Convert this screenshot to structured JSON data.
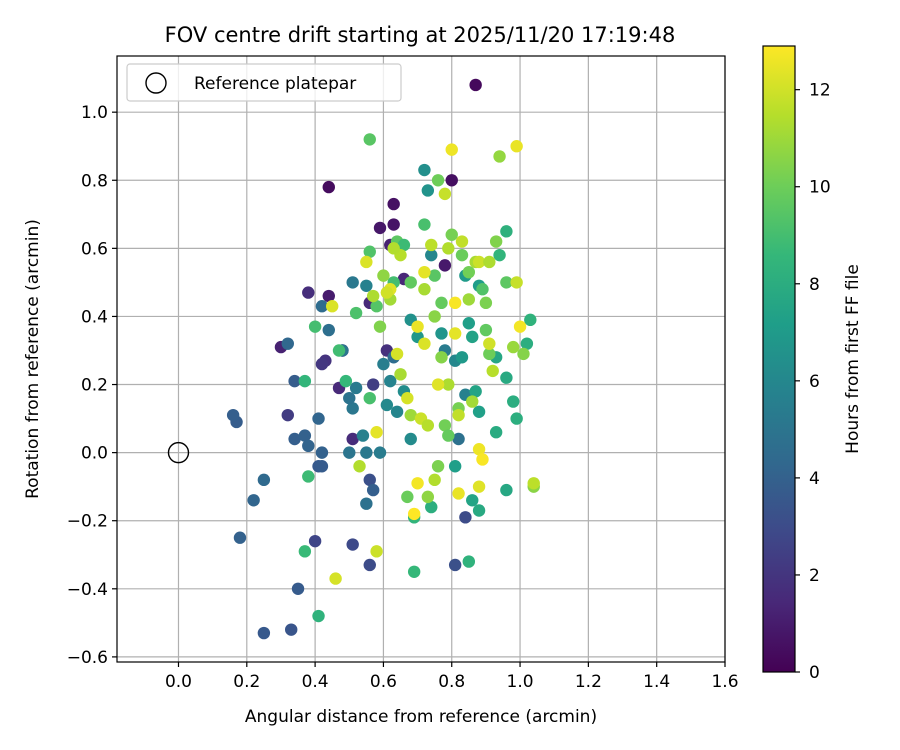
{
  "chart_data": {
    "type": "scatter",
    "title": "FOV centre drift starting at 2025/11/20 17:19:48",
    "xlabel": "Angular distance from reference (arcmin)",
    "ylabel": "Rotation from reference (arcmin)",
    "xlim": [
      -0.18,
      1.6
    ],
    "ylim": [
      -0.615,
      1.165
    ],
    "x_ticks": [
      0.0,
      0.2,
      0.4,
      0.6,
      0.8,
      1.0,
      1.2,
      1.4,
      1.6
    ],
    "x_tick_labels": [
      "0.0",
      "0.2",
      "0.4",
      "0.6",
      "0.8",
      "1.0",
      "1.2",
      "1.4",
      "1.6"
    ],
    "y_ticks": [
      -0.6,
      -0.4,
      -0.2,
      0.0,
      0.2,
      0.4,
      0.6,
      0.8,
      1.0
    ],
    "y_tick_labels": [
      "−0.6",
      "−0.4",
      "−0.2",
      "0.0",
      "0.2",
      "0.4",
      "0.6",
      "0.8",
      "1.0"
    ],
    "grid": true,
    "legend": {
      "position": "top-left",
      "entries": [
        {
          "label": "Reference platepar",
          "marker": "open-circle"
        }
      ]
    },
    "reference_point": {
      "x": 0.0,
      "y": 0.0,
      "label": "Reference platepar"
    },
    "colorbar": {
      "label": "Hours from first FF file",
      "range": [
        0,
        12.9
      ],
      "ticks": [
        0,
        2,
        4,
        6,
        8,
        10,
        12
      ],
      "tick_labels": [
        "0",
        "2",
        "4",
        "6",
        "8",
        "10",
        "12"
      ],
      "colormap": "viridis",
      "stops": [
        "#440154",
        "#482878",
        "#3e4989",
        "#31688e",
        "#26828e",
        "#1f9e89",
        "#35b779",
        "#6ece58",
        "#b5de2b",
        "#fde725"
      ]
    },
    "points": [
      {
        "x": 0.87,
        "y": 1.08,
        "c": 0.3
      },
      {
        "x": 0.44,
        "y": 0.78,
        "c": 0.4
      },
      {
        "x": 0.8,
        "y": 0.8,
        "c": 0.5
      },
      {
        "x": 0.63,
        "y": 0.73,
        "c": 0.6
      },
      {
        "x": 0.59,
        "y": 0.66,
        "c": 0.8
      },
      {
        "x": 0.63,
        "y": 0.67,
        "c": 0.7
      },
      {
        "x": 0.62,
        "y": 0.61,
        "c": 1.2
      },
      {
        "x": 0.78,
        "y": 0.55,
        "c": 0.9
      },
      {
        "x": 0.66,
        "y": 0.51,
        "c": 1.4
      },
      {
        "x": 0.44,
        "y": 0.46,
        "c": 1.0
      },
      {
        "x": 0.38,
        "y": 0.47,
        "c": 1.7
      },
      {
        "x": 0.56,
        "y": 0.44,
        "c": 1.5
      },
      {
        "x": 0.61,
        "y": 0.3,
        "c": 1.8
      },
      {
        "x": 0.48,
        "y": 0.3,
        "c": 1.1
      },
      {
        "x": 0.43,
        "y": 0.27,
        "c": 1.9
      },
      {
        "x": 0.3,
        "y": 0.31,
        "c": 1.2
      },
      {
        "x": 0.42,
        "y": 0.26,
        "c": 2.1
      },
      {
        "x": 0.47,
        "y": 0.19,
        "c": 1.5
      },
      {
        "x": 0.57,
        "y": 0.2,
        "c": 2.4
      },
      {
        "x": 0.32,
        "y": 0.11,
        "c": 2.3
      },
      {
        "x": 0.51,
        "y": 0.04,
        "c": 1.6
      },
      {
        "x": 0.56,
        "y": -0.08,
        "c": 3.2
      },
      {
        "x": 0.4,
        "y": -0.26,
        "c": 2.7
      },
      {
        "x": 0.51,
        "y": -0.27,
        "c": 2.9
      },
      {
        "x": 0.56,
        "y": -0.33,
        "c": 3.0
      },
      {
        "x": 0.33,
        "y": -0.52,
        "c": 3.4
      },
      {
        "x": 0.25,
        "y": -0.53,
        "c": 3.6
      },
      {
        "x": 0.35,
        "y": -0.4,
        "c": 3.7
      },
      {
        "x": 0.18,
        "y": -0.25,
        "c": 4.0
      },
      {
        "x": 0.22,
        "y": -0.14,
        "c": 4.2
      },
      {
        "x": 0.25,
        "y": -0.08,
        "c": 4.4
      },
      {
        "x": 0.17,
        "y": 0.09,
        "c": 3.8
      },
      {
        "x": 0.16,
        "y": 0.11,
        "c": 3.9
      },
      {
        "x": 0.34,
        "y": 0.04,
        "c": 3.9
      },
      {
        "x": 0.37,
        "y": 0.05,
        "c": 4.0
      },
      {
        "x": 0.38,
        "y": 0.02,
        "c": 4.1
      },
      {
        "x": 0.41,
        "y": -0.04,
        "c": 3.6
      },
      {
        "x": 0.42,
        "y": -0.04,
        "c": 3.7
      },
      {
        "x": 0.42,
        "y": 0.0,
        "c": 4.0
      },
      {
        "x": 0.41,
        "y": 0.1,
        "c": 4.2
      },
      {
        "x": 0.34,
        "y": 0.21,
        "c": 3.8
      },
      {
        "x": 0.32,
        "y": 0.32,
        "c": 4.3
      },
      {
        "x": 0.42,
        "y": 0.43,
        "c": 4.5
      },
      {
        "x": 0.44,
        "y": 0.36,
        "c": 4.7
      },
      {
        "x": 0.57,
        "y": -0.11,
        "c": 3.9
      },
      {
        "x": 0.55,
        "y": -0.15,
        "c": 4.8
      },
      {
        "x": 0.5,
        "y": 0.0,
        "c": 5.0
      },
      {
        "x": 0.55,
        "y": 0.0,
        "c": 5.2
      },
      {
        "x": 0.59,
        "y": 0.0,
        "c": 5.4
      },
      {
        "x": 0.51,
        "y": 0.13,
        "c": 5.1
      },
      {
        "x": 0.5,
        "y": 0.16,
        "c": 4.9
      },
      {
        "x": 0.52,
        "y": 0.19,
        "c": 5.3
      },
      {
        "x": 0.54,
        "y": 0.05,
        "c": 5.6
      },
      {
        "x": 0.48,
        "y": 0.3,
        "c": 5.0
      },
      {
        "x": 0.51,
        "y": 0.5,
        "c": 5.2
      },
      {
        "x": 0.55,
        "y": 0.49,
        "c": 5.7
      },
      {
        "x": 0.6,
        "y": 0.26,
        "c": 5.5
      },
      {
        "x": 0.63,
        "y": 0.28,
        "c": 4.6
      },
      {
        "x": 0.62,
        "y": 0.21,
        "c": 5.8
      },
      {
        "x": 0.61,
        "y": 0.14,
        "c": 6.1
      },
      {
        "x": 0.64,
        "y": 0.12,
        "c": 5.9
      },
      {
        "x": 0.66,
        "y": 0.18,
        "c": 6.3
      },
      {
        "x": 0.68,
        "y": 0.04,
        "c": 6.2
      },
      {
        "x": 0.72,
        "y": 0.83,
        "c": 6.4
      },
      {
        "x": 0.73,
        "y": 0.77,
        "c": 6.6
      },
      {
        "x": 0.74,
        "y": 0.58,
        "c": 6.0
      },
      {
        "x": 0.68,
        "y": 0.39,
        "c": 6.5
      },
      {
        "x": 0.7,
        "y": 0.34,
        "c": 6.8
      },
      {
        "x": 0.77,
        "y": 0.35,
        "c": 6.7
      },
      {
        "x": 0.78,
        "y": 0.3,
        "c": 5.4
      },
      {
        "x": 0.81,
        "y": 0.27,
        "c": 6.0
      },
      {
        "x": 0.83,
        "y": 0.28,
        "c": 6.9
      },
      {
        "x": 0.84,
        "y": 0.17,
        "c": 5.6
      },
      {
        "x": 0.82,
        "y": 0.04,
        "c": 4.8
      },
      {
        "x": 0.84,
        "y": -0.19,
        "c": 3.0
      },
      {
        "x": 0.81,
        "y": -0.33,
        "c": 3.2
      },
      {
        "x": 0.84,
        "y": 0.52,
        "c": 7.0
      },
      {
        "x": 0.88,
        "y": 0.49,
        "c": 7.1
      },
      {
        "x": 0.85,
        "y": 0.38,
        "c": 7.2
      },
      {
        "x": 0.86,
        "y": 0.34,
        "c": 7.4
      },
      {
        "x": 0.87,
        "y": 0.18,
        "c": 7.5
      },
      {
        "x": 0.88,
        "y": 0.12,
        "c": 7.3
      },
      {
        "x": 0.93,
        "y": 0.28,
        "c": 7.6
      },
      {
        "x": 0.96,
        "y": 0.22,
        "c": 7.8
      },
      {
        "x": 0.96,
        "y": -0.11,
        "c": 7.7
      },
      {
        "x": 0.93,
        "y": 0.06,
        "c": 7.9
      },
      {
        "x": 0.98,
        "y": 0.15,
        "c": 8.0
      },
      {
        "x": 0.99,
        "y": 0.1,
        "c": 8.1
      },
      {
        "x": 1.02,
        "y": 0.32,
        "c": 8.0
      },
      {
        "x": 1.03,
        "y": 0.39,
        "c": 8.3
      },
      {
        "x": 0.96,
        "y": 0.65,
        "c": 8.2
      },
      {
        "x": 0.94,
        "y": 0.58,
        "c": 8.4
      },
      {
        "x": 0.85,
        "y": -0.32,
        "c": 8.3
      },
      {
        "x": 0.88,
        "y": -0.17,
        "c": 7.8
      },
      {
        "x": 0.86,
        "y": -0.14,
        "c": 7.5
      },
      {
        "x": 0.81,
        "y": -0.04,
        "c": 7.2
      },
      {
        "x": 0.74,
        "y": -0.16,
        "c": 8.1
      },
      {
        "x": 0.69,
        "y": -0.19,
        "c": 8.4
      },
      {
        "x": 0.69,
        "y": -0.35,
        "c": 8.6
      },
      {
        "x": 0.41,
        "y": -0.48,
        "c": 8.3
      },
      {
        "x": 0.37,
        "y": -0.29,
        "c": 8.7
      },
      {
        "x": 0.38,
        "y": -0.07,
        "c": 8.8
      },
      {
        "x": 0.37,
        "y": 0.21,
        "c": 8.5
      },
      {
        "x": 0.4,
        "y": 0.37,
        "c": 9.0
      },
      {
        "x": 0.47,
        "y": 0.3,
        "c": 8.9
      },
      {
        "x": 0.49,
        "y": 0.21,
        "c": 8.6
      },
      {
        "x": 0.56,
        "y": 0.16,
        "c": 9.1
      },
      {
        "x": 0.56,
        "y": 0.59,
        "c": 9.3
      },
      {
        "x": 0.56,
        "y": 0.92,
        "c": 9.5
      },
      {
        "x": 0.52,
        "y": 0.41,
        "c": 9.2
      },
      {
        "x": 0.58,
        "y": 0.43,
        "c": 9.4
      },
      {
        "x": 0.63,
        "y": 0.5,
        "c": 9.0
      },
      {
        "x": 0.64,
        "y": 0.62,
        "c": 9.6
      },
      {
        "x": 0.66,
        "y": 0.61,
        "c": 8.8
      },
      {
        "x": 0.68,
        "y": 0.5,
        "c": 9.7
      },
      {
        "x": 0.72,
        "y": 0.67,
        "c": 9.1
      },
      {
        "x": 0.75,
        "y": 0.52,
        "c": 9.5
      },
      {
        "x": 0.77,
        "y": 0.44,
        "c": 9.8
      },
      {
        "x": 0.76,
        "y": 0.8,
        "c": 10.0
      },
      {
        "x": 0.8,
        "y": 0.64,
        "c": 10.2
      },
      {
        "x": 0.83,
        "y": 0.58,
        "c": 9.9
      },
      {
        "x": 0.85,
        "y": 0.53,
        "c": 10.1
      },
      {
        "x": 0.89,
        "y": 0.48,
        "c": 9.3
      },
      {
        "x": 0.9,
        "y": 0.44,
        "c": 10.3
      },
      {
        "x": 0.91,
        "y": 0.29,
        "c": 10.0
      },
      {
        "x": 0.9,
        "y": 0.36,
        "c": 9.7
      },
      {
        "x": 0.93,
        "y": 0.62,
        "c": 10.4
      },
      {
        "x": 0.94,
        "y": 0.87,
        "c": 10.8
      },
      {
        "x": 0.96,
        "y": 0.5,
        "c": 9.6
      },
      {
        "x": 1.01,
        "y": 0.29,
        "c": 10.5
      },
      {
        "x": 1.04,
        "y": -0.1,
        "c": 10.6
      },
      {
        "x": 0.98,
        "y": 0.31,
        "c": 10.9
      },
      {
        "x": 0.82,
        "y": 0.13,
        "c": 10.2
      },
      {
        "x": 0.78,
        "y": 0.08,
        "c": 10.1
      },
      {
        "x": 0.77,
        "y": 0.28,
        "c": 10.5
      },
      {
        "x": 0.75,
        "y": 0.4,
        "c": 10.6
      },
      {
        "x": 0.79,
        "y": 0.05,
        "c": 9.8
      },
      {
        "x": 0.76,
        "y": -0.04,
        "c": 10.3
      },
      {
        "x": 0.73,
        "y": -0.13,
        "c": 10.7
      },
      {
        "x": 0.67,
        "y": -0.13,
        "c": 9.9
      },
      {
        "x": 0.68,
        "y": 0.11,
        "c": 11.0
      },
      {
        "x": 0.65,
        "y": 0.23,
        "c": 11.2
      },
      {
        "x": 0.62,
        "y": 0.45,
        "c": 11.1
      },
      {
        "x": 0.6,
        "y": 0.52,
        "c": 10.7
      },
      {
        "x": 0.57,
        "y": 0.46,
        "c": 11.3
      },
      {
        "x": 0.59,
        "y": 0.37,
        "c": 10.4
      },
      {
        "x": 0.65,
        "y": 0.58,
        "c": 11.5
      },
      {
        "x": 0.63,
        "y": 0.6,
        "c": 11.4
      },
      {
        "x": 0.72,
        "y": 0.48,
        "c": 11.2
      },
      {
        "x": 0.74,
        "y": 0.61,
        "c": 11.6
      },
      {
        "x": 0.78,
        "y": 0.76,
        "c": 11.8
      },
      {
        "x": 0.79,
        "y": 0.6,
        "c": 11.4
      },
      {
        "x": 0.83,
        "y": 0.62,
        "c": 11.7
      },
      {
        "x": 0.85,
        "y": 0.45,
        "c": 11.0
      },
      {
        "x": 0.87,
        "y": 0.56,
        "c": 11.2
      },
      {
        "x": 0.88,
        "y": 0.56,
        "c": 11.9
      },
      {
        "x": 0.91,
        "y": 0.32,
        "c": 12.0
      },
      {
        "x": 0.92,
        "y": 0.24,
        "c": 11.5
      },
      {
        "x": 0.91,
        "y": 0.56,
        "c": 11.3
      },
      {
        "x": 0.99,
        "y": 0.5,
        "c": 11.8
      },
      {
        "x": 1.04,
        "y": -0.09,
        "c": 11.6
      },
      {
        "x": 0.86,
        "y": 0.15,
        "c": 11.1
      },
      {
        "x": 0.79,
        "y": 0.2,
        "c": 11.3
      },
      {
        "x": 0.82,
        "y": 0.11,
        "c": 11.7
      },
      {
        "x": 0.75,
        "y": -0.08,
        "c": 11.4
      },
      {
        "x": 0.67,
        "y": 0.16,
        "c": 12.1
      },
      {
        "x": 0.71,
        "y": 0.1,
        "c": 11.9
      },
      {
        "x": 0.73,
        "y": 0.08,
        "c": 11.5
      },
      {
        "x": 0.53,
        "y": -0.04,
        "c": 11.4
      },
      {
        "x": 0.58,
        "y": -0.29,
        "c": 11.9
      },
      {
        "x": 0.46,
        "y": -0.37,
        "c": 12.1
      },
      {
        "x": 0.55,
        "y": 0.56,
        "c": 12.2
      },
      {
        "x": 0.62,
        "y": 0.48,
        "c": 12.3
      },
      {
        "x": 0.72,
        "y": 0.53,
        "c": 12.4
      },
      {
        "x": 0.7,
        "y": 0.37,
        "c": 12.5
      },
      {
        "x": 0.72,
        "y": 0.32,
        "c": 12.2
      },
      {
        "x": 0.76,
        "y": 0.2,
        "c": 12.3
      },
      {
        "x": 0.8,
        "y": 0.89,
        "c": 12.6
      },
      {
        "x": 0.99,
        "y": 0.9,
        "c": 12.5
      },
      {
        "x": 1.0,
        "y": 0.37,
        "c": 12.7
      },
      {
        "x": 0.81,
        "y": 0.44,
        "c": 12.8
      },
      {
        "x": 0.81,
        "y": 0.35,
        "c": 12.4
      },
      {
        "x": 0.88,
        "y": 0.01,
        "c": 12.6
      },
      {
        "x": 0.89,
        "y": -0.02,
        "c": 12.8
      },
      {
        "x": 0.88,
        "y": -0.1,
        "c": 12.3
      },
      {
        "x": 0.82,
        "y": -0.12,
        "c": 12.5
      },
      {
        "x": 0.7,
        "y": -0.09,
        "c": 12.7
      },
      {
        "x": 0.69,
        "y": -0.18,
        "c": 12.9
      },
      {
        "x": 0.58,
        "y": 0.06,
        "c": 12.4
      },
      {
        "x": 0.45,
        "y": 0.43,
        "c": 12.2
      },
      {
        "x": 0.61,
        "y": 0.47,
        "c": 12.0
      },
      {
        "x": 0.64,
        "y": 0.29,
        "c": 12.1
      }
    ]
  }
}
